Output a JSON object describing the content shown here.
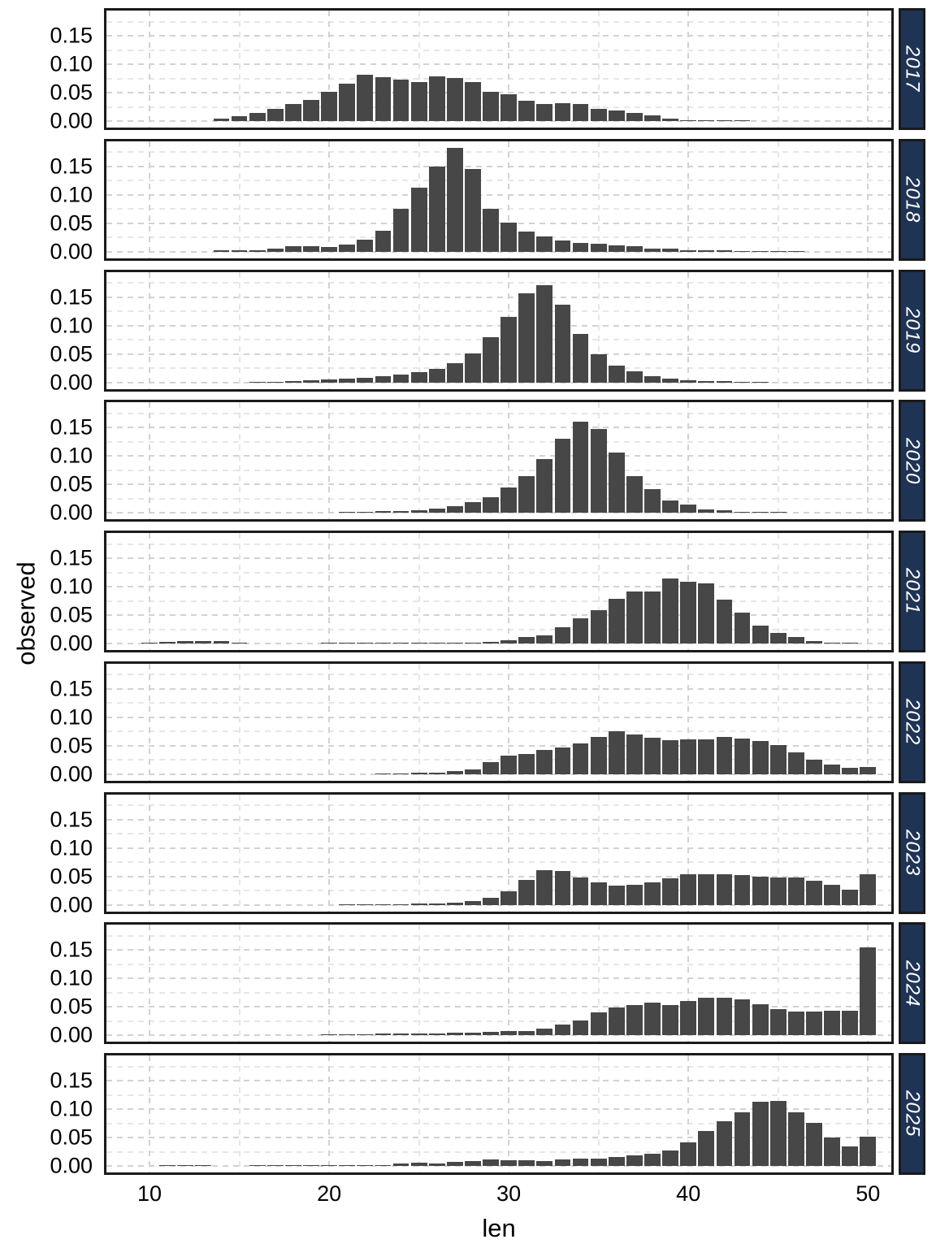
{
  "figure": {
    "x_axis": {
      "title": "len",
      "tick_labels": [
        "10",
        "20",
        "30",
        "40",
        "50"
      ],
      "tick_values": [
        10,
        20,
        30,
        40,
        50
      ],
      "minor_values": [
        15,
        25,
        35,
        45
      ],
      "domain": [
        7.6,
        51.3
      ]
    },
    "y_axis": {
      "title": "observed",
      "tick_labels": [
        "0.00",
        "0.05",
        "0.10",
        "0.15"
      ],
      "tick_values": [
        0,
        0.05,
        0.1,
        0.15
      ],
      "minor_values": [
        0.025,
        0.075,
        0.125,
        0.175
      ],
      "domain": [
        0,
        0.194
      ]
    },
    "colors": {
      "bar": "#474747",
      "strip_bg": "#1f3354",
      "strip_text": "#ffffff",
      "panel_border": "#1a1a1a",
      "grid_major": "#d2d2d2",
      "grid_minor": "#e6e6e6",
      "background": "#ffffff",
      "text": "#000000"
    }
  },
  "chart_data": {
    "type": "bar",
    "title": "",
    "xlabel": "len",
    "ylabel": "observed",
    "facet_variable": "year",
    "bin_width": 1,
    "bar_width": 0.9,
    "x_range": [
      10,
      50
    ],
    "ylim": [
      0,
      0.19
    ],
    "grid": "dashed",
    "facets": [
      {
        "year": "2017",
        "bars": [
          [
            14,
            0.004
          ],
          [
            15,
            0.009
          ],
          [
            16,
            0.015
          ],
          [
            17,
            0.021
          ],
          [
            18,
            0.03
          ],
          [
            19,
            0.037
          ],
          [
            20,
            0.052
          ],
          [
            21,
            0.066
          ],
          [
            22,
            0.081
          ],
          [
            23,
            0.077
          ],
          [
            24,
            0.073
          ],
          [
            25,
            0.068
          ],
          [
            26,
            0.079
          ],
          [
            27,
            0.076
          ],
          [
            28,
            0.068
          ],
          [
            29,
            0.052
          ],
          [
            30,
            0.047
          ],
          [
            31,
            0.036
          ],
          [
            32,
            0.03
          ],
          [
            33,
            0.032
          ],
          [
            34,
            0.03
          ],
          [
            35,
            0.021
          ],
          [
            36,
            0.018
          ],
          [
            37,
            0.014
          ],
          [
            38,
            0.01
          ],
          [
            39,
            0.004
          ],
          [
            40,
            0.002
          ],
          [
            41,
            0.001
          ],
          [
            42,
            0.001
          ],
          [
            43,
            0.001
          ]
        ]
      },
      {
        "year": "2018",
        "bars": [
          [
            14,
            0.002
          ],
          [
            15,
            0.002
          ],
          [
            16,
            0.003
          ],
          [
            17,
            0.005
          ],
          [
            18,
            0.009
          ],
          [
            19,
            0.009
          ],
          [
            20,
            0.008
          ],
          [
            21,
            0.012
          ],
          [
            22,
            0.021
          ],
          [
            23,
            0.037
          ],
          [
            24,
            0.075
          ],
          [
            25,
            0.112
          ],
          [
            26,
            0.149
          ],
          [
            27,
            0.183
          ],
          [
            28,
            0.146
          ],
          [
            29,
            0.075
          ],
          [
            30,
            0.051
          ],
          [
            31,
            0.036
          ],
          [
            32,
            0.027
          ],
          [
            33,
            0.019
          ],
          [
            34,
            0.015
          ],
          [
            35,
            0.014
          ],
          [
            36,
            0.011
          ],
          [
            37,
            0.009
          ],
          [
            38,
            0.006
          ],
          [
            39,
            0.005
          ],
          [
            40,
            0.003
          ],
          [
            41,
            0.002
          ],
          [
            42,
            0.002
          ],
          [
            43,
            0.001
          ],
          [
            44,
            0.001
          ],
          [
            45,
            0.001
          ],
          [
            46,
            0.001
          ]
        ]
      },
      {
        "year": "2019",
        "bars": [
          [
            16,
            0.001
          ],
          [
            17,
            0.001
          ],
          [
            18,
            0.002
          ],
          [
            19,
            0.003
          ],
          [
            20,
            0.005
          ],
          [
            21,
            0.006
          ],
          [
            22,
            0.008
          ],
          [
            23,
            0.011
          ],
          [
            24,
            0.014
          ],
          [
            25,
            0.018
          ],
          [
            26,
            0.023
          ],
          [
            27,
            0.033
          ],
          [
            28,
            0.051
          ],
          [
            29,
            0.08
          ],
          [
            30,
            0.115
          ],
          [
            31,
            0.157
          ],
          [
            32,
            0.171
          ],
          [
            33,
            0.136
          ],
          [
            34,
            0.085
          ],
          [
            35,
            0.049
          ],
          [
            36,
            0.03
          ],
          [
            37,
            0.019
          ],
          [
            38,
            0.011
          ],
          [
            39,
            0.007
          ],
          [
            40,
            0.004
          ],
          [
            41,
            0.002
          ],
          [
            42,
            0.002
          ],
          [
            43,
            0.001
          ],
          [
            44,
            0.001
          ]
        ]
      },
      {
        "year": "2020",
        "bars": [
          [
            21,
            0.002
          ],
          [
            22,
            0.002
          ],
          [
            23,
            0.003
          ],
          [
            24,
            0.003
          ],
          [
            25,
            0.005
          ],
          [
            26,
            0.008
          ],
          [
            27,
            0.012
          ],
          [
            28,
            0.019
          ],
          [
            29,
            0.028
          ],
          [
            30,
            0.044
          ],
          [
            31,
            0.065
          ],
          [
            32,
            0.094
          ],
          [
            33,
            0.131
          ],
          [
            34,
            0.161
          ],
          [
            35,
            0.147
          ],
          [
            36,
            0.106
          ],
          [
            37,
            0.065
          ],
          [
            38,
            0.042
          ],
          [
            39,
            0.022
          ],
          [
            40,
            0.015
          ],
          [
            41,
            0.006
          ],
          [
            42,
            0.004
          ],
          [
            43,
            0.002
          ],
          [
            44,
            0.002
          ],
          [
            45,
            0.001
          ]
        ]
      },
      {
        "year": "2021",
        "bars": [
          [
            10,
            0.002
          ],
          [
            11,
            0.003
          ],
          [
            12,
            0.004
          ],
          [
            13,
            0.004
          ],
          [
            14,
            0.004
          ],
          [
            15,
            0.002
          ],
          [
            20,
            0.001
          ],
          [
            21,
            0.001
          ],
          [
            22,
            0.001
          ],
          [
            23,
            0.001
          ],
          [
            24,
            0.001
          ],
          [
            25,
            0.001
          ],
          [
            26,
            0.001
          ],
          [
            27,
            0.001
          ],
          [
            28,
            0.002
          ],
          [
            29,
            0.003
          ],
          [
            30,
            0.006
          ],
          [
            31,
            0.011
          ],
          [
            32,
            0.015
          ],
          [
            33,
            0.028
          ],
          [
            34,
            0.044
          ],
          [
            35,
            0.059
          ],
          [
            36,
            0.078
          ],
          [
            37,
            0.092
          ],
          [
            38,
            0.091
          ],
          [
            39,
            0.115
          ],
          [
            40,
            0.108
          ],
          [
            41,
            0.106
          ],
          [
            42,
            0.077
          ],
          [
            43,
            0.054
          ],
          [
            44,
            0.031
          ],
          [
            45,
            0.018
          ],
          [
            46,
            0.011
          ],
          [
            47,
            0.005
          ],
          [
            48,
            0.002
          ],
          [
            49,
            0.001
          ]
        ]
      },
      {
        "year": "2022",
        "bars": [
          [
            23,
            0.001
          ],
          [
            24,
            0.001
          ],
          [
            25,
            0.002
          ],
          [
            26,
            0.003
          ],
          [
            27,
            0.005
          ],
          [
            28,
            0.008
          ],
          [
            29,
            0.021
          ],
          [
            30,
            0.032
          ],
          [
            31,
            0.035
          ],
          [
            32,
            0.042
          ],
          [
            33,
            0.047
          ],
          [
            34,
            0.054
          ],
          [
            35,
            0.065
          ],
          [
            36,
            0.076
          ],
          [
            37,
            0.07
          ],
          [
            38,
            0.064
          ],
          [
            39,
            0.06
          ],
          [
            40,
            0.061
          ],
          [
            41,
            0.061
          ],
          [
            42,
            0.065
          ],
          [
            43,
            0.062
          ],
          [
            44,
            0.058
          ],
          [
            45,
            0.051
          ],
          [
            46,
            0.038
          ],
          [
            47,
            0.026
          ],
          [
            48,
            0.017
          ],
          [
            49,
            0.011
          ],
          [
            50,
            0.013
          ]
        ]
      },
      {
        "year": "2023",
        "bars": [
          [
            21,
            0.001
          ],
          [
            22,
            0.001
          ],
          [
            23,
            0.001
          ],
          [
            24,
            0.001
          ],
          [
            25,
            0.002
          ],
          [
            26,
            0.002
          ],
          [
            27,
            0.004
          ],
          [
            28,
            0.006
          ],
          [
            29,
            0.012
          ],
          [
            30,
            0.024
          ],
          [
            31,
            0.044
          ],
          [
            32,
            0.061
          ],
          [
            33,
            0.059
          ],
          [
            34,
            0.048
          ],
          [
            35,
            0.039
          ],
          [
            36,
            0.033
          ],
          [
            37,
            0.035
          ],
          [
            38,
            0.04
          ],
          [
            39,
            0.046
          ],
          [
            40,
            0.053
          ],
          [
            41,
            0.053
          ],
          [
            42,
            0.054
          ],
          [
            43,
            0.052
          ],
          [
            44,
            0.049
          ],
          [
            45,
            0.048
          ],
          [
            46,
            0.048
          ],
          [
            47,
            0.042
          ],
          [
            48,
            0.035
          ],
          [
            49,
            0.026
          ],
          [
            50,
            0.054
          ]
        ]
      },
      {
        "year": "2024",
        "bars": [
          [
            20,
            0.002
          ],
          [
            21,
            0.002
          ],
          [
            22,
            0.002
          ],
          [
            23,
            0.003
          ],
          [
            24,
            0.003
          ],
          [
            25,
            0.003
          ],
          [
            26,
            0.003
          ],
          [
            27,
            0.004
          ],
          [
            28,
            0.005
          ],
          [
            29,
            0.006
          ],
          [
            30,
            0.007
          ],
          [
            31,
            0.008
          ],
          [
            32,
            0.012
          ],
          [
            33,
            0.019
          ],
          [
            34,
            0.026
          ],
          [
            35,
            0.041
          ],
          [
            36,
            0.049
          ],
          [
            37,
            0.053
          ],
          [
            38,
            0.058
          ],
          [
            39,
            0.053
          ],
          [
            40,
            0.06
          ],
          [
            41,
            0.066
          ],
          [
            42,
            0.066
          ],
          [
            43,
            0.063
          ],
          [
            44,
            0.055
          ],
          [
            45,
            0.046
          ],
          [
            46,
            0.042
          ],
          [
            47,
            0.042
          ],
          [
            48,
            0.043
          ],
          [
            49,
            0.043
          ],
          [
            50,
            0.154
          ]
        ]
      },
      {
        "year": "2025",
        "bars": [
          [
            11,
            0.001
          ],
          [
            12,
            0.001
          ],
          [
            13,
            0.001
          ],
          [
            16,
            0.001
          ],
          [
            17,
            0.001
          ],
          [
            18,
            0.001
          ],
          [
            19,
            0.001
          ],
          [
            20,
            0.001
          ],
          [
            21,
            0.001
          ],
          [
            22,
            0.001
          ],
          [
            23,
            0.002
          ],
          [
            24,
            0.004
          ],
          [
            25,
            0.006
          ],
          [
            26,
            0.005
          ],
          [
            27,
            0.007
          ],
          [
            28,
            0.009
          ],
          [
            29,
            0.011
          ],
          [
            30,
            0.01
          ],
          [
            31,
            0.01
          ],
          [
            32,
            0.009
          ],
          [
            33,
            0.011
          ],
          [
            34,
            0.013
          ],
          [
            35,
            0.013
          ],
          [
            36,
            0.016
          ],
          [
            37,
            0.018
          ],
          [
            38,
            0.021
          ],
          [
            39,
            0.027
          ],
          [
            40,
            0.042
          ],
          [
            41,
            0.061
          ],
          [
            42,
            0.079
          ],
          [
            43,
            0.094
          ],
          [
            44,
            0.113
          ],
          [
            45,
            0.115
          ],
          [
            46,
            0.095
          ],
          [
            47,
            0.076
          ],
          [
            48,
            0.05
          ],
          [
            49,
            0.034
          ],
          [
            50,
            0.052
          ]
        ]
      }
    ]
  }
}
